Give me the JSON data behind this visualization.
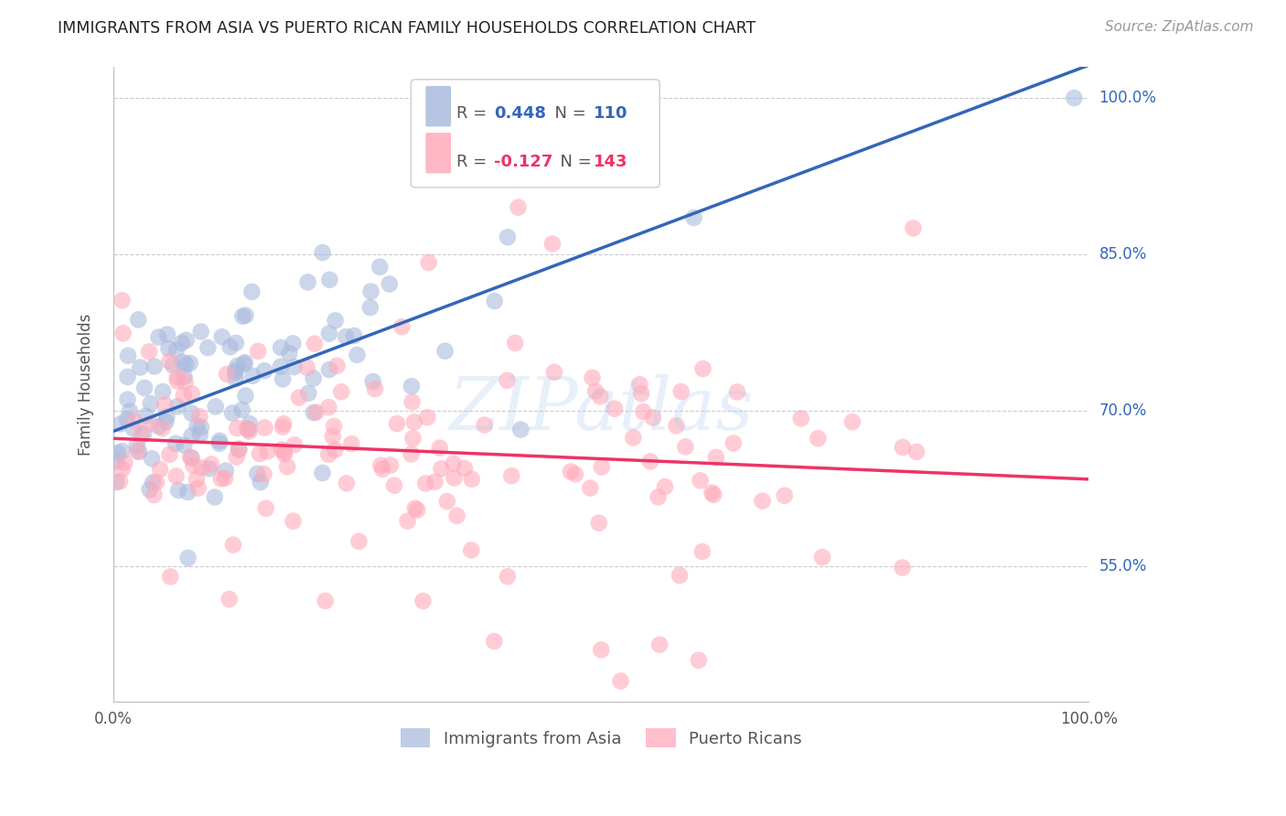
{
  "title": "IMMIGRANTS FROM ASIA VS PUERTO RICAN FAMILY HOUSEHOLDS CORRELATION CHART",
  "source": "Source: ZipAtlas.com",
  "ylabel": "Family Households",
  "x_min": 0.0,
  "x_max": 1.0,
  "y_min": 0.42,
  "y_max": 1.03,
  "y_ticks": [
    0.55,
    0.7,
    0.85,
    1.0
  ],
  "y_tick_labels": [
    "55.0%",
    "70.0%",
    "85.0%",
    "100.0%"
  ],
  "background_color": "#ffffff",
  "grid_color": "#cccccc",
  "blue_color": "#aabbdd",
  "pink_color": "#ffaabb",
  "blue_line_color": "#3366bb",
  "pink_line_color": "#ee3366",
  "blue_R": 0.448,
  "blue_N": 110,
  "pink_R": -0.127,
  "pink_N": 143,
  "legend_blue_label": "Immigrants from Asia",
  "legend_pink_label": "Puerto Ricans"
}
